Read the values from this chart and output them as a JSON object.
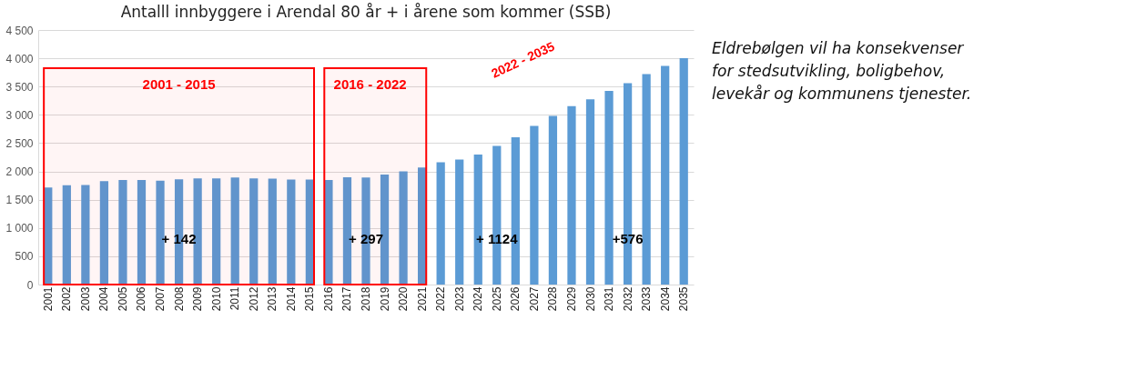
{
  "chart_data": {
    "type": "bar",
    "title": "Antalll innbyggere i Arendal 80 år + i årene som kommer (SSB)",
    "categories": [
      "2001",
      "2002",
      "2003",
      "2004",
      "2005",
      "2006",
      "2007",
      "2008",
      "2009",
      "2010",
      "2011",
      "2012",
      "2013",
      "2014",
      "2015",
      "2016",
      "2017",
      "2018",
      "2019",
      "2020",
      "2021",
      "2022",
      "2023",
      "2024",
      "2025",
      "2026",
      "2027",
      "2028",
      "2029",
      "2030",
      "2031",
      "2032",
      "2033",
      "2034",
      "2035"
    ],
    "values": [
      1715,
      1756,
      1758,
      1827,
      1847,
      1847,
      1837,
      1862,
      1877,
      1877,
      1892,
      1877,
      1872,
      1857,
      1857,
      1847,
      1897,
      1892,
      1943,
      1999,
      2070,
      2160,
      2210,
      2300,
      2450,
      2605,
      2805,
      2980,
      3155,
      3275,
      3425,
      3560,
      3720,
      3865,
      4000
    ],
    "color": "#5b9bd5",
    "ylim": [
      0,
      4500
    ],
    "yticks": [
      0,
      500,
      {
        "value": 1000,
        "label": "1 000"
      },
      {
        "value": 1500,
        "label": "1 500"
      },
      {
        "value": 2000,
        "label": "2 000"
      },
      {
        "value": 2500,
        "label": "2 500"
      },
      {
        "value": 3000,
        "label": "3 000"
      },
      {
        "value": 3500,
        "label": "3 500"
      },
      {
        "value": 4000,
        "label": "4 000"
      },
      {
        "value": 4500,
        "label": "4 500"
      }
    ],
    "grid": "y",
    "bands": [
      {
        "axis": "x",
        "from": "2001",
        "to": "2015",
        "label": "2001 - 2015",
        "color": "#ff0000"
      },
      {
        "axis": "x",
        "from": "2016",
        "to": "2021",
        "label": "2016 - 2022",
        "color": "#ff0000"
      }
    ],
    "annotations": [
      {
        "text": "+ 142",
        "x": "2008",
        "y": 800
      },
      {
        "text": "+ 297",
        "x": "2018",
        "y": 800
      },
      {
        "text": "+ 1124",
        "x": "2025",
        "y": 800
      },
      {
        "text": "+576",
        "x": "2032",
        "y": 800
      },
      "2022 - 2035",
      "Eldrebølgen vil ha konsekvenser for stedsutvikling, boligbehov, levekår og kommunens tjenester."
    ]
  }
}
